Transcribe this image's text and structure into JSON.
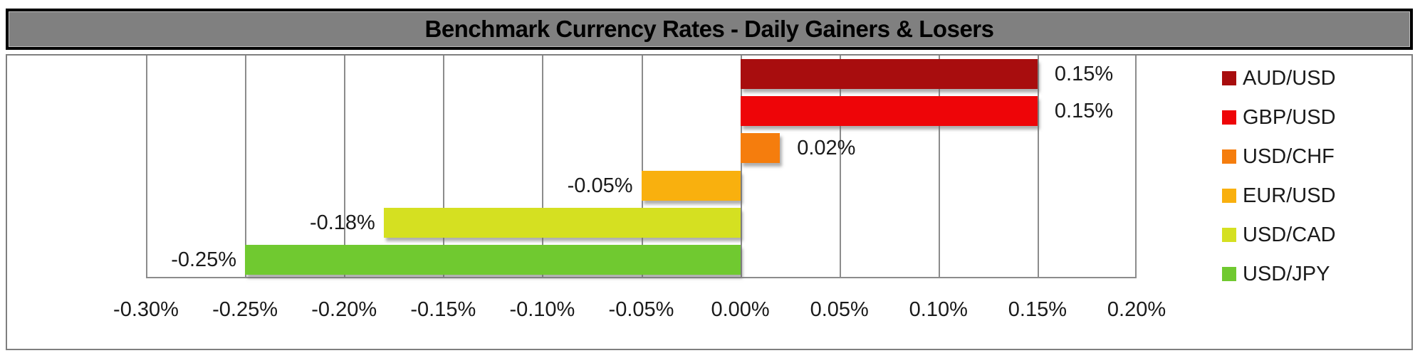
{
  "title": "Benchmark Currency Rates - Daily Gainers & Losers",
  "chart_data": {
    "type": "bar",
    "orientation": "horizontal",
    "title": "Benchmark Currency Rates - Daily Gainers & Losers",
    "categories": [
      "AUD/USD",
      "GBP/USD",
      "USD/CHF",
      "EUR/USD",
      "USD/CAD",
      "USD/JPY"
    ],
    "values": [
      0.15,
      0.15,
      0.02,
      -0.05,
      -0.18,
      -0.25
    ],
    "value_labels": [
      "0.15%",
      "0.15%",
      "0.02%",
      "-0.05%",
      "-0.18%",
      "-0.25%"
    ],
    "bar_colors": [
      "#A80D0E",
      "#EE0508",
      "#F57D0D",
      "#F9B00E",
      "#D5E021",
      "#70C930"
    ],
    "xlabel": "",
    "ylabel": "",
    "x_axis": {
      "min": -0.3,
      "max": 0.2,
      "step": 0.05,
      "unit": "%",
      "tick_labels": [
        "-0.30%",
        "-0.25%",
        "-0.20%",
        "-0.15%",
        "-0.10%",
        "-0.05%",
        "0.00%",
        "0.05%",
        "0.10%",
        "0.15%",
        "0.20%"
      ]
    },
    "grid": true,
    "legend": {
      "position": "right",
      "entries": [
        "AUD/USD",
        "GBP/USD",
        "USD/CHF",
        "EUR/USD",
        "USD/CAD",
        "USD/JPY"
      ]
    }
  },
  "colors": {
    "background": "#FFFFFF",
    "title_bg": "#808080",
    "title_border": "#000000",
    "title_text": "#000000",
    "frame_border": "#7F7F7F",
    "gridline": "#8C8C8C",
    "axis_line": "#8C8C8C",
    "label_text": "#1A1A1A"
  }
}
